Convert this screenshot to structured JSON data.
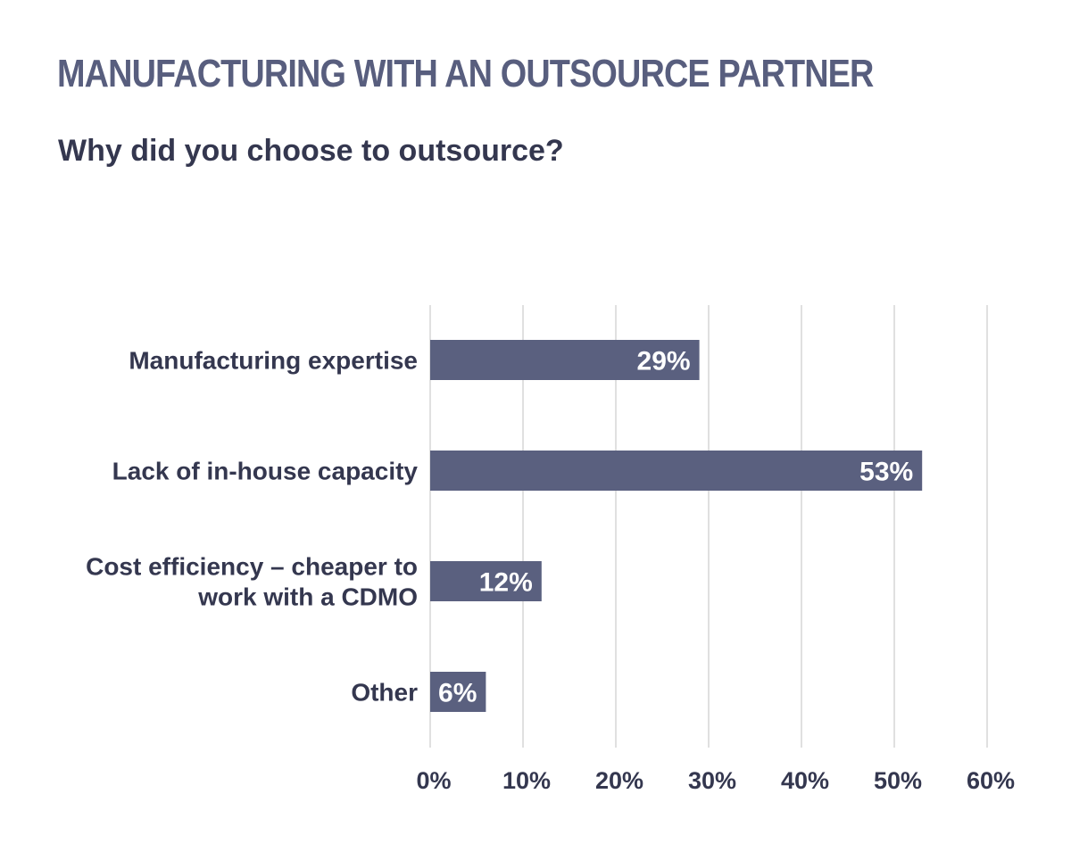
{
  "header": {
    "title": "MANUFACTURING WITH AN OUTSOURCE PARTNER",
    "subtitle": "Why did you choose to outsource?"
  },
  "colors": {
    "bar": "#5a607f",
    "grid": "#d6d6d6",
    "text": "#34374f",
    "title": "#585e7e"
  },
  "chart_data": {
    "type": "bar",
    "orientation": "horizontal",
    "categories": [
      [
        "Manufacturing expertise"
      ],
      [
        "Lack of in-house capacity"
      ],
      [
        "Cost efficiency – cheaper to",
        "work with a CDMO"
      ],
      [
        "Other"
      ]
    ],
    "values": [
      29,
      53,
      12,
      6
    ],
    "data_labels": [
      "29%",
      "53%",
      "12%",
      "6%"
    ],
    "xlim": [
      0,
      60
    ],
    "xticks": [
      0,
      10,
      20,
      30,
      40,
      50,
      60
    ],
    "xtick_labels": [
      "0%",
      "10%",
      "20%",
      "30%",
      "40%",
      "50%",
      "60%"
    ],
    "grid": true,
    "legend": "none"
  }
}
